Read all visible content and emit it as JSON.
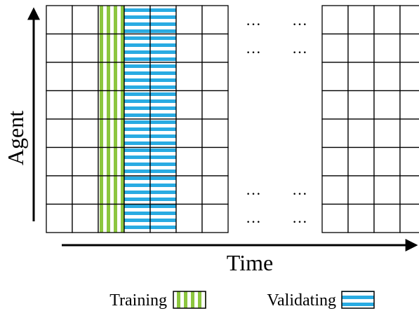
{
  "axes": {
    "y_label": "Agent",
    "x_label": "Time"
  },
  "grid": {
    "rows": 8,
    "left_columns": 7,
    "right_columns": 4,
    "training_column": 3,
    "validating_columns": [
      4,
      5
    ]
  },
  "ellipsis": "···",
  "legend": {
    "training_label": "Training",
    "validating_label": "Validating"
  },
  "colors": {
    "training": "#8cc63f",
    "validating": "#29abe2",
    "grid_line": "#000000",
    "background": "#ffffff"
  }
}
